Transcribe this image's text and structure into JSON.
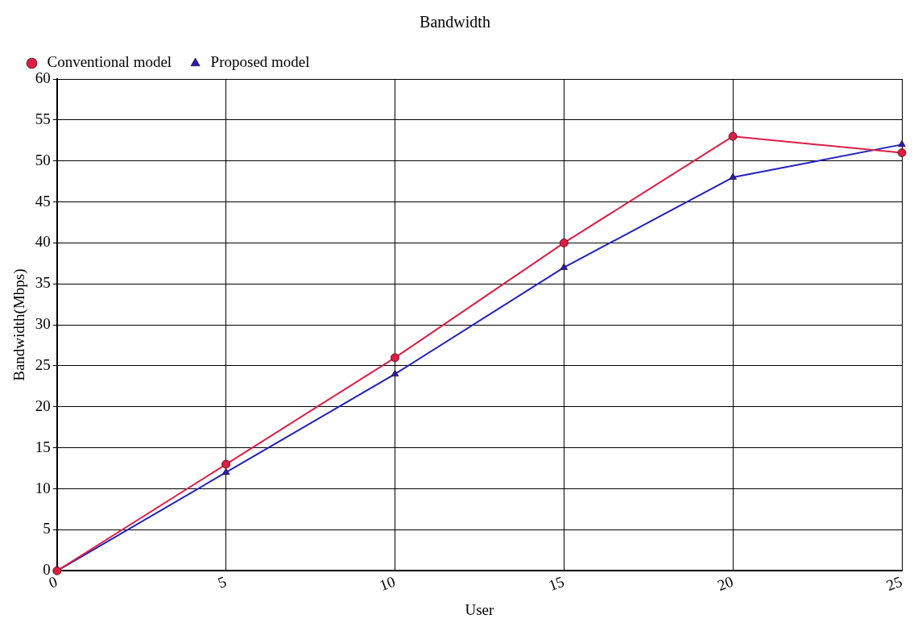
{
  "chart_data": {
    "type": "line",
    "title": "Bandwidth",
    "xlabel": "User",
    "ylabel": "Bandwidth(Mbps)",
    "x": [
      0,
      5,
      10,
      15,
      20,
      25
    ],
    "series": [
      {
        "name": "Conventional model",
        "color": "#dc1e46",
        "marker": "circle",
        "values": [
          0,
          13,
          26,
          40,
          53,
          51
        ]
      },
      {
        "name": "Proposed model",
        "color": "#2020c0",
        "marker": "triangle",
        "values": [
          0,
          12,
          24,
          37,
          48,
          52
        ]
      }
    ],
    "xlim": [
      0,
      25
    ],
    "xticks": [
      0,
      5,
      10,
      15,
      20,
      25
    ],
    "ylim": [
      0,
      60
    ],
    "yticks": [
      0,
      5,
      10,
      15,
      20,
      25,
      30,
      35,
      40,
      45,
      50,
      55,
      60
    ],
    "grid": true,
    "legend": "top left",
    "line_style": "solid"
  }
}
